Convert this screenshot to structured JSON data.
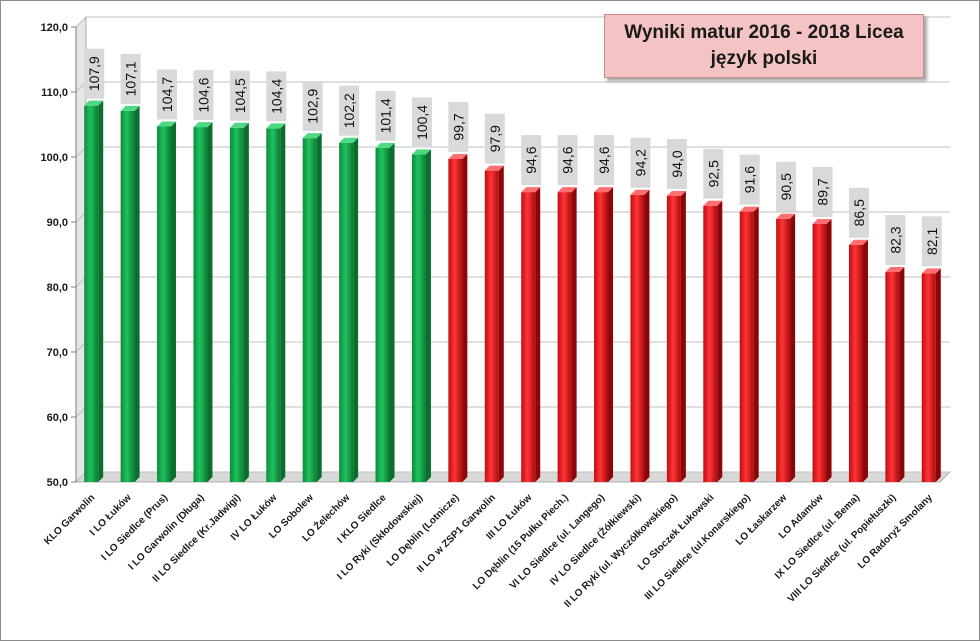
{
  "chart_data": {
    "type": "bar",
    "title": "Wyniki matur 2016 - 2018 Licea",
    "subtitle": "język polski",
    "ylim": [
      50,
      120
    ],
    "yticks": [
      "50,0",
      "60,0",
      "70,0",
      "80,0",
      "90,0",
      "100,0",
      "110,0",
      "120,0"
    ],
    "grid": true,
    "colors": {
      "above": "#12a84a",
      "below": "#e8191c"
    },
    "categories": [
      "KLO Garwolin",
      "I LO Łuków",
      "I LO Siedlce (Prus)",
      "I LO Garwolin (Długa)",
      "II LO Siedlce (Kr.Jadwigi)",
      "IV LO Łuków",
      "LO Sobolew",
      "LO Żelechów",
      "I KLO Siedlce",
      "I LO Ryki (Skłodowskiej)",
      "LO Dęblin (Lotnicze)",
      "II LO w ZSP1 Garwolin",
      "III LO Łuków",
      "LO Dęblin (15 Pułku Piech.)",
      "VI LO Siedlce (ul. Langego)",
      "IV LO Siedlce (Żółkiewski)",
      "II LO Ryki (ul. Wyczółkowskiego)",
      "LO Stoczek Łukowski",
      "III LO Siedlce (ul.Konarskiego)",
      "LO Łaskarzew",
      "LO Adamów",
      "IX LO Siedlce (ul. Bema)",
      "VIII LO Siedlce (ul. Popiełuszki)",
      "LO Radoryż Smolany"
    ],
    "values": [
      107.9,
      107.1,
      104.7,
      104.6,
      104.5,
      104.4,
      102.9,
      102.2,
      101.4,
      100.4,
      99.7,
      97.9,
      94.6,
      94.6,
      94.6,
      94.2,
      94.0,
      92.5,
      91.6,
      90.5,
      89.7,
      86.5,
      82.3,
      82.1
    ],
    "data_labels": [
      "107,9",
      "107,1",
      "104,7",
      "104,6",
      "104,5",
      "104,4",
      "102,9",
      "102,2",
      "101,4",
      "100,4",
      "99,7",
      "97,9",
      "94,6",
      "94,6",
      "94,6",
      "94,2",
      "94,0",
      "92,5",
      "91,6",
      "90,5",
      "89,7",
      "86,5",
      "82,3",
      "82,1"
    ]
  }
}
